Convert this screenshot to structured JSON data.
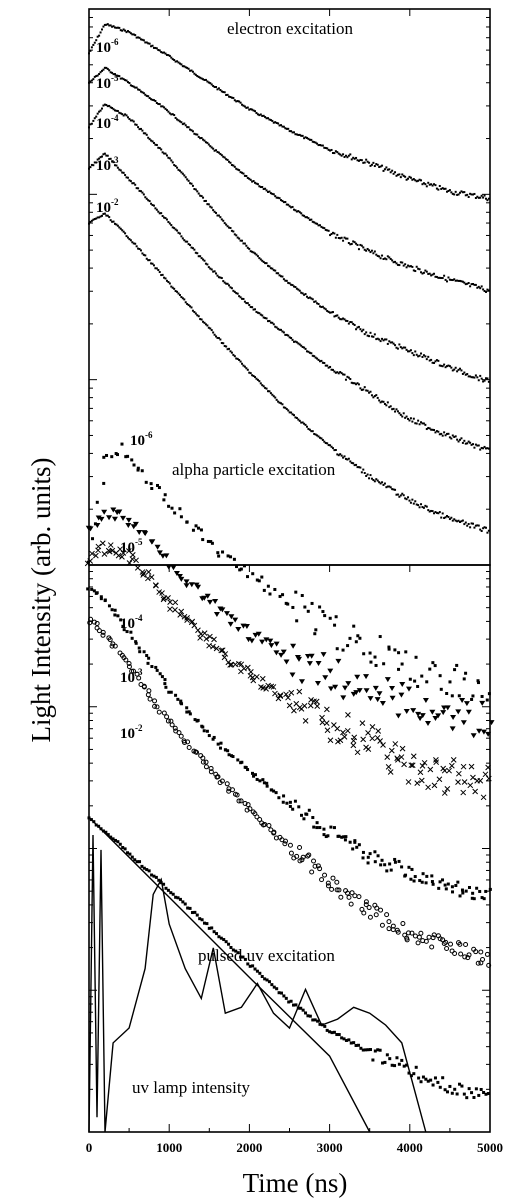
{
  "chart_data": {
    "type": "scatter",
    "xlabel": "Time (ns)",
    "ylabel": "Light Intensity (arb. units)",
    "xlim": [
      0,
      5000
    ],
    "x_ticks": [
      0,
      1000,
      2000,
      3000,
      4000,
      5000
    ],
    "x_tick_labels": [
      "0",
      "1000",
      "2000",
      "3000",
      "4000",
      "5000"
    ],
    "y_scale": "log",
    "grid": false,
    "panels": [
      {
        "annotation": "electron excitation",
        "series": [
          {
            "name": "10^-6",
            "label_base": "10",
            "label_exp": "-6",
            "x": [
              0,
              200,
              500,
              1000,
              1500,
              2000,
              2500,
              3000,
              3500,
              4000,
              4500,
              5000
            ],
            "y": [
              0.62,
              0.85,
              0.78,
              0.6,
              0.45,
              0.34,
              0.27,
              0.22,
              0.19,
              0.16,
              0.14,
              0.13
            ]
          },
          {
            "name": "10^-5",
            "label_base": "10",
            "label_exp": "-5",
            "x": [
              0,
              200,
              500,
              1000,
              1500,
              2000,
              2500,
              3000,
              3500,
              4000,
              4500,
              5000
            ],
            "y": [
              0.45,
              0.53,
              0.45,
              0.33,
              0.23,
              0.16,
              0.12,
              0.09,
              0.073,
              0.062,
              0.054,
              0.048
            ]
          },
          {
            "name": "10^-4",
            "label_base": "10",
            "label_exp": "-4",
            "x": [
              0,
              200,
              500,
              1000,
              1500,
              2000,
              2500,
              3000,
              3500,
              4000,
              4500,
              5000
            ],
            "y": [
              0.28,
              0.36,
              0.31,
              0.2,
              0.12,
              0.075,
              0.052,
              0.038,
              0.03,
              0.025,
              0.021,
              0.018
            ]
          },
          {
            "name": "10^-3",
            "label_base": "10",
            "label_exp": "-3",
            "x": [
              0,
              200,
              500,
              1000,
              1500,
              2000,
              2500,
              3000,
              3500,
              4000,
              4500,
              5000
            ],
            "y": [
              0.18,
              0.21,
              0.16,
              0.1,
              0.062,
              0.041,
              0.029,
              0.021,
              0.016,
              0.012,
              0.01,
              0.0085
            ]
          },
          {
            "name": "10^-2",
            "label_base": "10",
            "label_exp": "-2",
            "x": [
              0,
              200,
              500,
              1000,
              1500,
              2000,
              2500,
              3000,
              3500,
              4000,
              4500,
              5000
            ],
            "y": [
              0.1,
              0.11,
              0.085,
              0.052,
              0.032,
              0.02,
              0.013,
              0.009,
              0.0065,
              0.005,
              0.0041,
              0.0036
            ]
          }
        ]
      },
      {
        "annotation": "alpha particle excitation",
        "series": [
          {
            "name": "10^-6",
            "label_base": "10",
            "label_exp": "-6",
            "marker": "square",
            "x": [
              0,
              200,
              400,
              700,
              1000,
              1500,
              2000,
              2500,
              3000,
              3500,
              4000,
              4500,
              5000
            ],
            "y": [
              1.0,
              3.2,
              3.6,
              2.6,
              1.9,
              1.2,
              0.85,
              0.6,
              0.45,
              0.35,
              0.28,
              0.25,
              0.2
            ]
          },
          {
            "name": "10^-5",
            "label_base": "10",
            "label_exp": "-5",
            "marker": "triangle",
            "x": [
              0,
              200,
              400,
              700,
              1000,
              1500,
              2000,
              2500,
              3000,
              3500,
              4000,
              4500,
              5000
            ],
            "y": [
              1.4,
              1.7,
              1.65,
              1.3,
              0.95,
              0.6,
              0.42,
              0.32,
              0.26,
              0.22,
              0.19,
              0.17,
              0.15
            ]
          },
          {
            "name": "10^-4",
            "label_base": "10",
            "label_exp": "-4",
            "marker": "x",
            "x": [
              0,
              200,
              400,
              700,
              1000,
              1500,
              2000,
              2500,
              3000,
              3500,
              4000,
              4500,
              5000
            ],
            "y": [
              0.95,
              1.15,
              1.1,
              0.85,
              0.6,
              0.38,
              0.26,
              0.19,
              0.15,
              0.12,
              0.09,
              0.08,
              0.075
            ]
          },
          {
            "name": "10^-3",
            "label_base": "10",
            "label_exp": "-3",
            "marker": "square",
            "x": [
              0,
              200,
              400,
              700,
              1000,
              1500,
              2000,
              2500,
              3000,
              3500,
              4000,
              4500,
              5000
            ],
            "y": [
              0.72,
              0.62,
              0.48,
              0.32,
              0.22,
              0.13,
              0.085,
              0.058,
              0.042,
              0.032,
              0.026,
              0.022,
              0.02
            ]
          },
          {
            "name": "10^-2",
            "label_base": "10",
            "label_exp": "-2",
            "marker": "circle",
            "x": [
              0,
              200,
              400,
              700,
              1000,
              1500,
              2000,
              2500,
              3000,
              3500,
              4000,
              4500,
              5000
            ],
            "y": [
              0.5,
              0.42,
              0.33,
              0.22,
              0.15,
              0.088,
              0.055,
              0.035,
              0.024,
              0.017,
              0.013,
              0.011,
              0.0095
            ]
          }
        ]
      },
      {
        "annotation": "pulsed uv excitation",
        "series": [
          {
            "name": "",
            "marker": "square",
            "x": [
              0,
              500,
              1000,
              1500,
              2000,
              2500,
              3000,
              3500,
              4000,
              4500,
              5000
            ],
            "y": [
              0.9,
              0.55,
              0.33,
              0.2,
              0.12,
              0.072,
              0.048,
              0.036,
              0.028,
              0.022,
              0.02
            ]
          },
          {
            "name": "",
            "style": "line",
            "x": [
              0,
              1000,
              2000,
              3000,
              3500
            ],
            "y": [
              0.9,
              0.3,
              0.1,
              0.034,
              0.02
            ]
          }
        ]
      },
      {
        "annotation": "uv lamp intensity",
        "series": [
          {
            "name": "uv lamp intensity",
            "style": "line",
            "x": [
              0,
              50,
              100,
              150,
              200,
              300,
              500,
              700,
              800,
              900,
              1000,
              1200,
              1400,
              1550,
              1700,
              1900,
              2100,
              2300,
              2500,
              2700,
              2900,
              3100,
              3300,
              3500,
              3700,
              3900,
              4000,
              4100,
              4200
            ],
            "y": [
              0.0,
              1.0,
              0.05,
              0.95,
              0.0,
              0.3,
              0.35,
              0.55,
              0.8,
              0.85,
              0.7,
              0.55,
              0.45,
              0.62,
              0.4,
              0.42,
              0.5,
              0.4,
              0.35,
              0.48,
              0.36,
              0.38,
              0.42,
              0.4,
              0.36,
              0.3,
              0.2,
              0.1,
              0.0
            ]
          }
        ]
      }
    ]
  }
}
